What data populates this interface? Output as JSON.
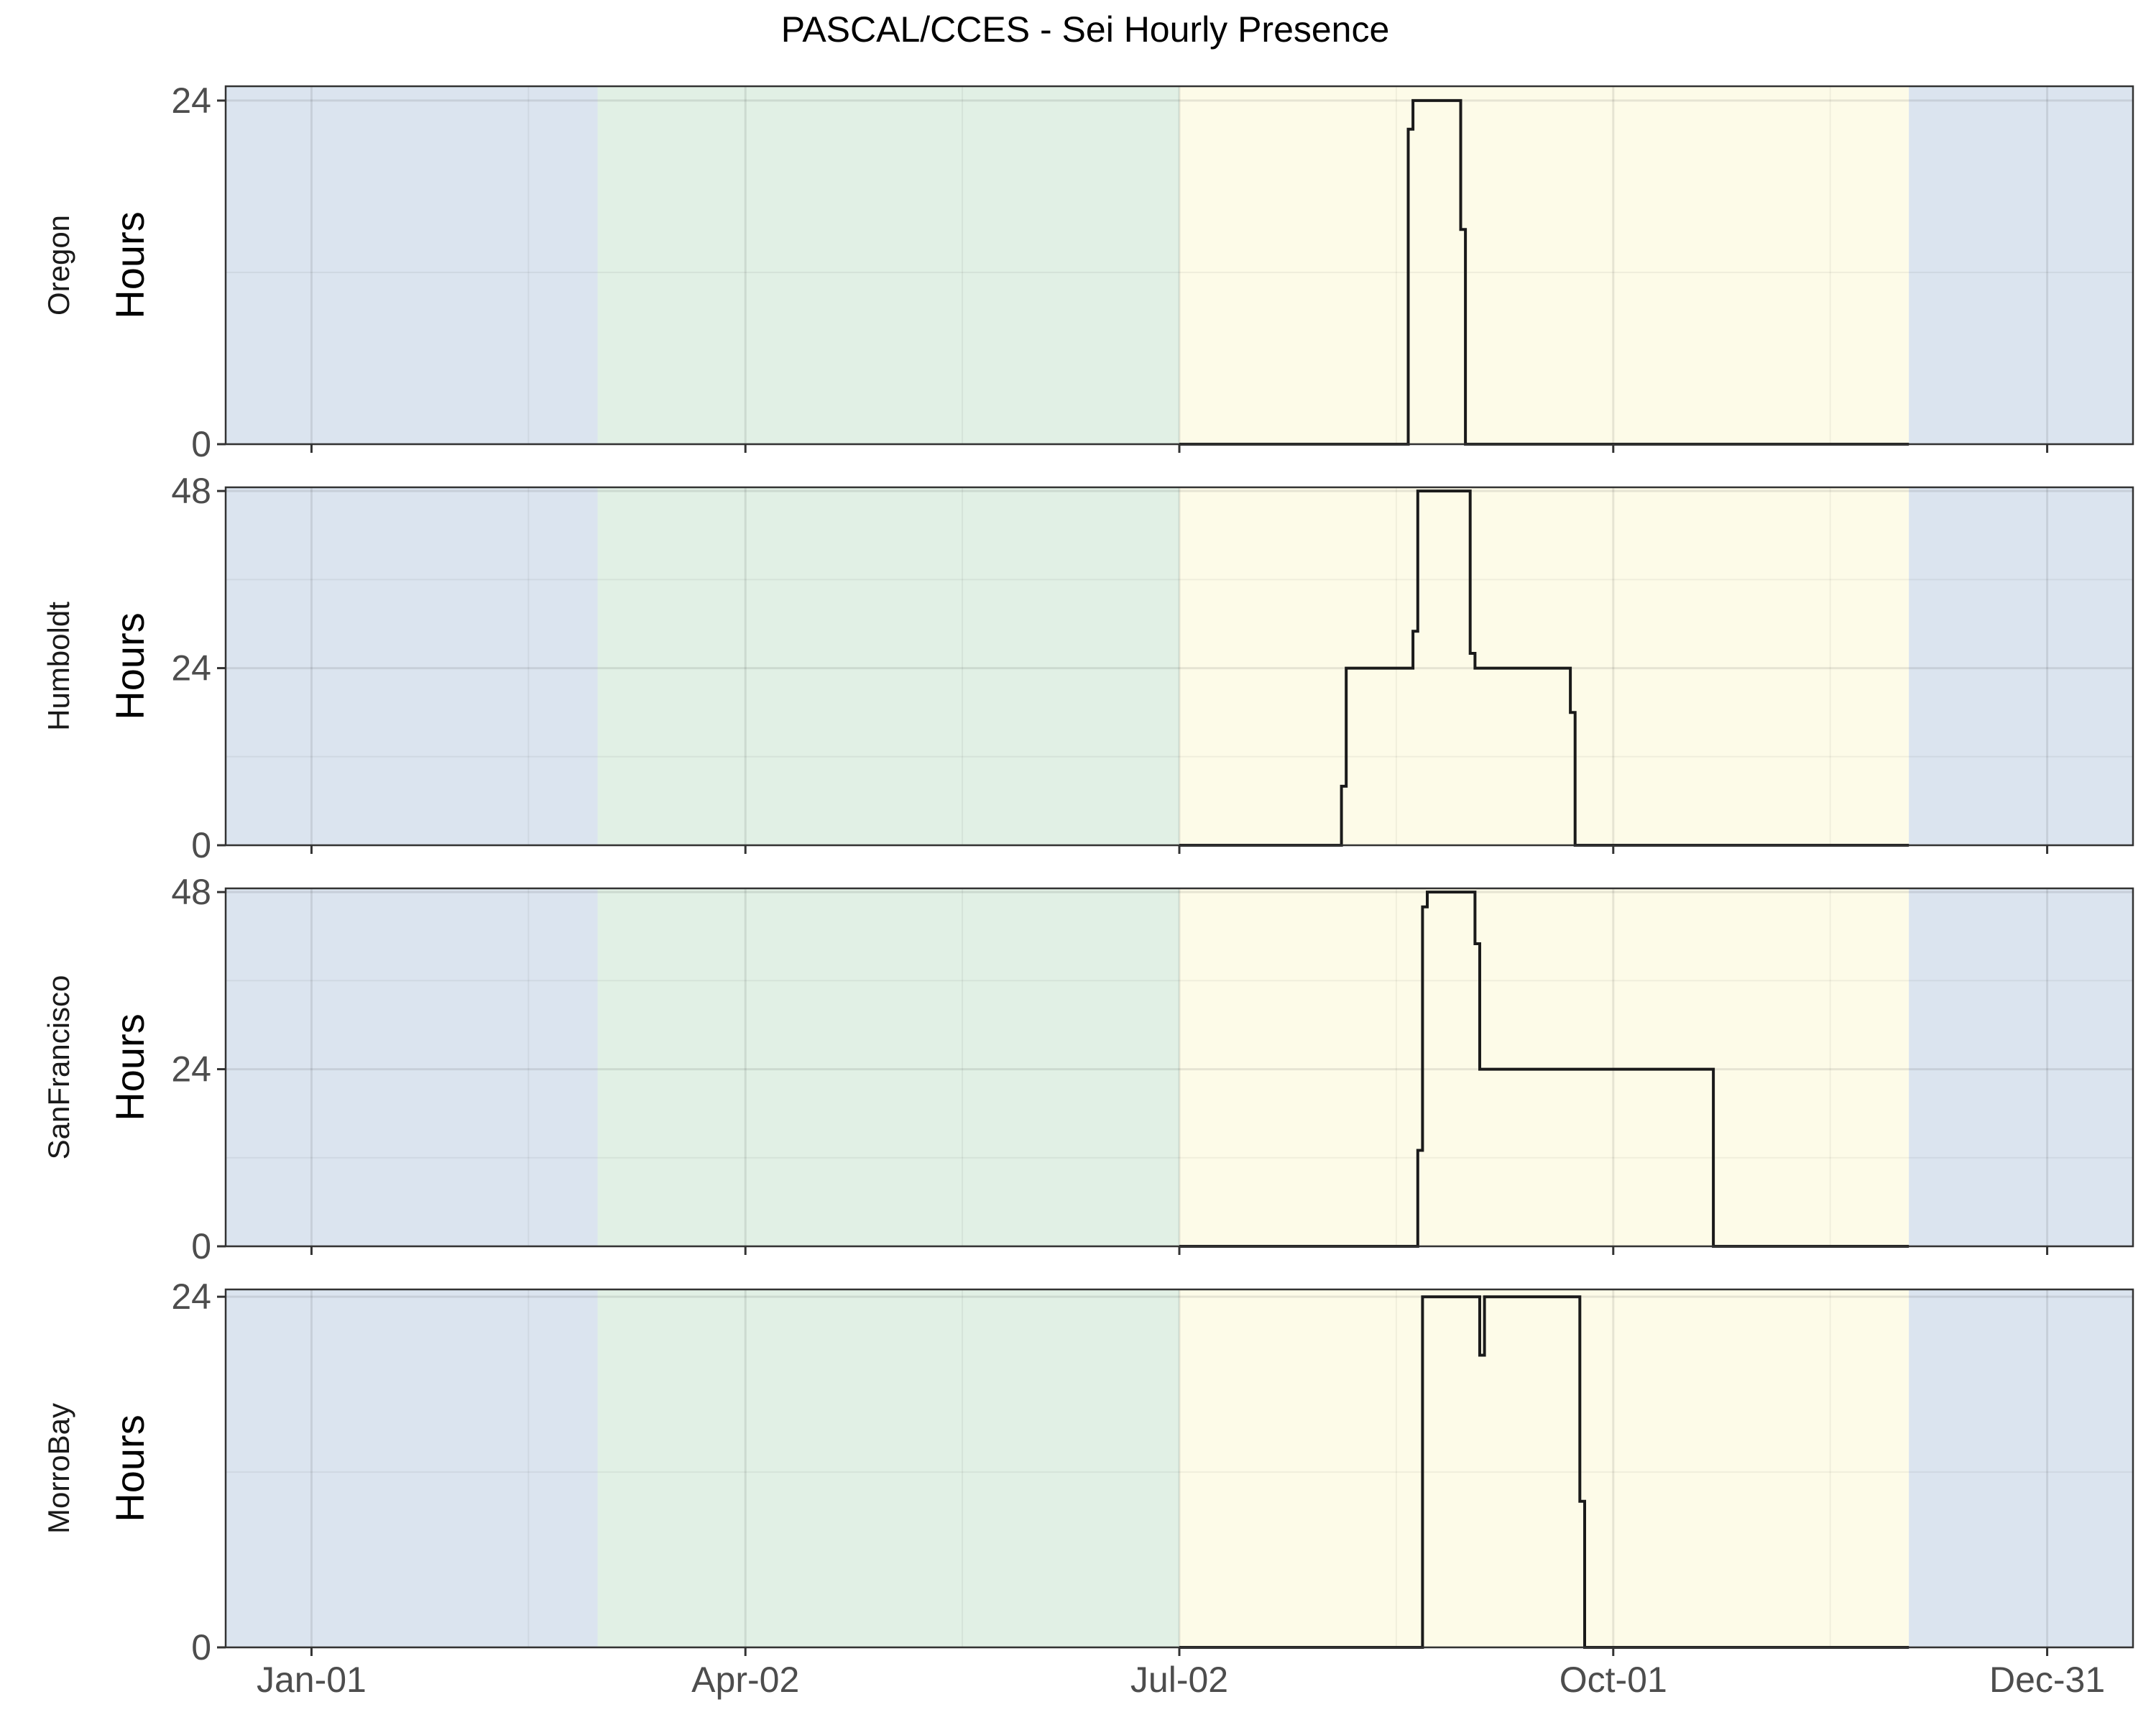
{
  "chart_data": {
    "type": "area",
    "title": "PASCAL/CCES - Sei Hourly Presence",
    "ylabel": "Hours",
    "x_ticks": [
      "Jan-01",
      "Apr-02",
      "Jul-02",
      "Oct-01",
      "Dec-31"
    ],
    "x_tick_days": [
      0,
      91,
      182,
      273,
      364
    ],
    "xlim_days": [
      -18,
      382
    ],
    "season_bands": [
      {
        "from": -18,
        "to": 60,
        "color": "#dbe4ef"
      },
      {
        "from": 60,
        "to": 182,
        "color": "#e1f0e5"
      },
      {
        "from": 182,
        "to": 335,
        "color": "#fdfbe8"
      },
      {
        "from": 335,
        "to": 382,
        "color": "#dbe4ef"
      }
    ],
    "panels": [
      {
        "facet_label": "Oregon",
        "y_ticks": [
          "0",
          "24"
        ],
        "ylim": [
          0,
          25
        ],
        "steps": [
          [
            182,
            0
          ],
          [
            230,
            0
          ],
          [
            230,
            22
          ],
          [
            231,
            22
          ],
          [
            231,
            24
          ],
          [
            241,
            24
          ],
          [
            241,
            15
          ],
          [
            242,
            15
          ],
          [
            242,
            0
          ],
          [
            335,
            0
          ]
        ]
      },
      {
        "facet_label": "Humboldt",
        "y_ticks": [
          "0",
          "24",
          "48"
        ],
        "ylim": [
          0,
          48.5
        ],
        "steps": [
          [
            182,
            0
          ],
          [
            216,
            0
          ],
          [
            216,
            8
          ],
          [
            217,
            8
          ],
          [
            217,
            24
          ],
          [
            231,
            24
          ],
          [
            231,
            29
          ],
          [
            232,
            29
          ],
          [
            232,
            48
          ],
          [
            243,
            48
          ],
          [
            243,
            26
          ],
          [
            244,
            26
          ],
          [
            244,
            24
          ],
          [
            264,
            24
          ],
          [
            264,
            18
          ],
          [
            265,
            18
          ],
          [
            265,
            0
          ],
          [
            335,
            0
          ]
        ]
      },
      {
        "facet_label": "SanFrancisco",
        "y_ticks": [
          "0",
          "24",
          "48"
        ],
        "ylim": [
          0,
          48.5
        ],
        "steps": [
          [
            182,
            0
          ],
          [
            232,
            0
          ],
          [
            232,
            13
          ],
          [
            233,
            13
          ],
          [
            233,
            46
          ],
          [
            234,
            46
          ],
          [
            234,
            48
          ],
          [
            244,
            48
          ],
          [
            244,
            41
          ],
          [
            245,
            41
          ],
          [
            245,
            24
          ],
          [
            294,
            24
          ],
          [
            294,
            0
          ],
          [
            335,
            0
          ]
        ]
      },
      {
        "facet_label": "MorroBay",
        "y_ticks": [
          "0",
          "24"
        ],
        "ylim": [
          0,
          24.5
        ],
        "steps": [
          [
            182,
            0
          ],
          [
            233,
            0
          ],
          [
            233,
            24
          ],
          [
            245,
            24
          ],
          [
            245,
            20
          ],
          [
            246,
            20
          ],
          [
            246,
            24
          ],
          [
            266,
            24
          ],
          [
            266,
            10
          ],
          [
            267,
            10
          ],
          [
            267,
            0
          ],
          [
            335,
            0
          ]
        ]
      }
    ]
  }
}
